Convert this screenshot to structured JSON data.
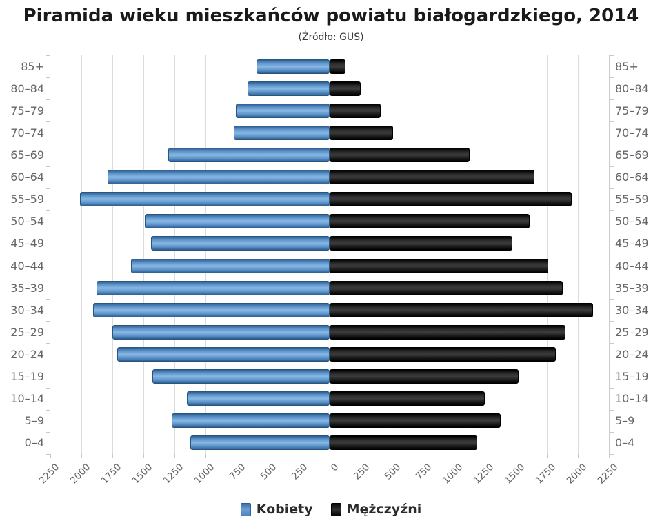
{
  "title": "Piramida wieku mieszkańców powiatu białogardzkiego, 2014",
  "subtitle": "(Źródło: GUS)",
  "legend": {
    "items": [
      {
        "label": "Kobiety",
        "color": "#5b91c6"
      },
      {
        "label": "Mężczyźni",
        "color": "#1a1a1a"
      }
    ]
  },
  "chart_data": {
    "type": "bar",
    "variant": "population-pyramid",
    "title": "Piramida wieku mieszkańców powiatu białogardzkiego, 2014",
    "subtitle": "(Źródło: GUS)",
    "categories": [
      "85+",
      "80–84",
      "75–79",
      "70–74",
      "65–69",
      "60–64",
      "55–59",
      "50–54",
      "45–49",
      "40–44",
      "35–39",
      "30–34",
      "25–29",
      "20–24",
      "15–19",
      "10–14",
      "5–9",
      "0–4"
    ],
    "categories_order": "top-to-bottom",
    "series": [
      {
        "name": "Kobiety",
        "side": "left",
        "color": "#5b91c6",
        "values": [
          590,
          660,
          755,
          775,
          1300,
          1790,
          2010,
          1490,
          1440,
          1600,
          1880,
          1905,
          1750,
          1710,
          1430,
          1150,
          1270,
          1120
        ]
      },
      {
        "name": "Mężczyźni",
        "side": "right",
        "color": "#1a1a1a",
        "values": [
          130,
          250,
          410,
          510,
          1130,
          1650,
          1950,
          1610,
          1470,
          1760,
          1880,
          2120,
          1900,
          1820,
          1520,
          1250,
          1380,
          1190
        ]
      }
    ],
    "x_axis": {
      "max_per_side": 2250,
      "tick_interval": 250,
      "tick_labels": [
        "2250",
        "2000",
        "1750",
        "1500",
        "1250",
        "1000",
        "750",
        "500",
        "250",
        "0",
        "250",
        "500",
        "750",
        "1000",
        "1250",
        "1500",
        "1750",
        "2000",
        "2250"
      ]
    },
    "grid": true,
    "legend_position": "bottom"
  }
}
